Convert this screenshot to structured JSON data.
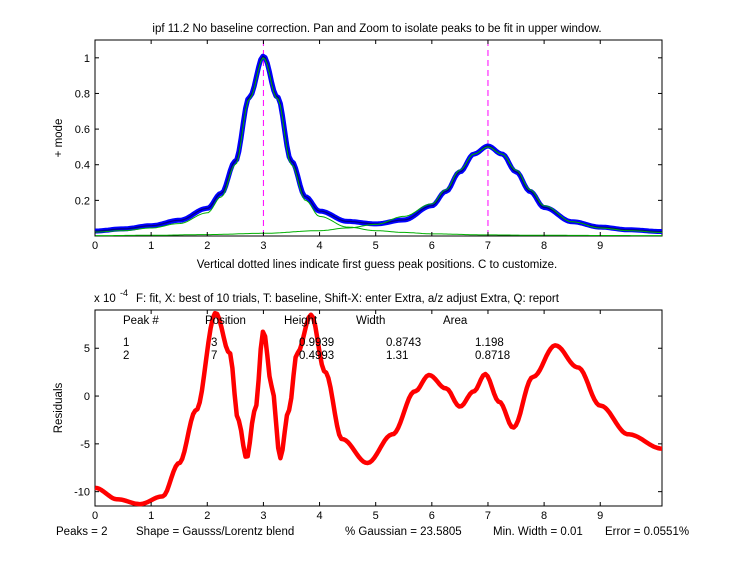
{
  "window": {
    "background": "#ffffff"
  },
  "colors": {
    "data_blue": "#0000ff",
    "fit_line": "#000080",
    "component_green": "#00b000",
    "marker_magenta": "#ff00ff",
    "residual_red": "#ff0000",
    "axis_black": "#000000"
  },
  "chart_data": [
    {
      "type": "line",
      "title": "ipf 11.2 No baseline correction. Pan and Zoom to isolate peaks to be fit in upper window.",
      "xlabel": "Vertical dotted lines indicate first guess peak positions. C to customize.",
      "ylabel": "+ mode",
      "xlim": [
        0,
        10.1
      ],
      "ylim": [
        0,
        1.1
      ],
      "grid": false,
      "xticks": [
        "0",
        "1",
        "2",
        "3",
        "4",
        "5",
        "6",
        "7",
        "8",
        "9"
      ],
      "yticks": [
        "0.2",
        "0.4",
        "0.6",
        "0.8",
        "1"
      ],
      "first_guess_positions": [
        3,
        7
      ],
      "series": [
        {
          "name": "",
          "style": "data-markers",
          "color": "#0000ff",
          "x": [
            0,
            0.5,
            1,
            1.5,
            2,
            2.25,
            2.5,
            2.75,
            3,
            3.25,
            3.5,
            3.75,
            4,
            4.5,
            5,
            5.5,
            6,
            6.25,
            6.5,
            6.75,
            7,
            7.25,
            7.5,
            7.75,
            8,
            8.5,
            9,
            9.5,
            10.1
          ],
          "y": [
            0.028,
            0.04,
            0.058,
            0.088,
            0.155,
            0.24,
            0.42,
            0.78,
            1.01,
            0.78,
            0.42,
            0.22,
            0.14,
            0.082,
            0.068,
            0.09,
            0.17,
            0.25,
            0.36,
            0.46,
            0.505,
            0.46,
            0.36,
            0.25,
            0.16,
            0.08,
            0.05,
            0.035,
            0.025
          ]
        },
        {
          "name": "",
          "style": "fit-line",
          "color": "#000080",
          "x": [
            0,
            0.5,
            1,
            1.5,
            2,
            2.25,
            2.5,
            2.75,
            3,
            3.25,
            3.5,
            3.75,
            4,
            4.5,
            5,
            5.5,
            6,
            6.25,
            6.5,
            6.75,
            7,
            7.25,
            7.5,
            7.75,
            8,
            8.5,
            9,
            9.5,
            10.1
          ],
          "y": [
            0.028,
            0.04,
            0.058,
            0.088,
            0.155,
            0.24,
            0.42,
            0.78,
            1.01,
            0.78,
            0.42,
            0.22,
            0.14,
            0.082,
            0.068,
            0.09,
            0.17,
            0.25,
            0.36,
            0.46,
            0.505,
            0.46,
            0.36,
            0.25,
            0.16,
            0.08,
            0.05,
            0.035,
            0.025
          ]
        },
        {
          "name": "",
          "style": "component",
          "color": "#00b000",
          "x": [
            0,
            0.5,
            1,
            1.5,
            2,
            2.25,
            2.5,
            2.75,
            3,
            3.25,
            3.5,
            3.75,
            4,
            4.5,
            5,
            5.5,
            6,
            7,
            8,
            9,
            10.1
          ],
          "y": [
            0.022,
            0.03,
            0.045,
            0.07,
            0.13,
            0.22,
            0.4,
            0.77,
            1.0,
            0.77,
            0.4,
            0.2,
            0.11,
            0.05,
            0.03,
            0.02,
            0.012,
            0.006,
            0.004,
            0.003,
            0.002
          ]
        },
        {
          "name": "",
          "style": "component",
          "color": "#00b000",
          "x": [
            0,
            1,
            2,
            3,
            4,
            4.5,
            5,
            5.5,
            6,
            6.25,
            6.5,
            6.75,
            7,
            7.25,
            7.5,
            7.75,
            8,
            8.5,
            9,
            9.5,
            10.1
          ],
          "y": [
            0.002,
            0.004,
            0.008,
            0.015,
            0.03,
            0.045,
            0.065,
            0.11,
            0.18,
            0.26,
            0.37,
            0.46,
            0.5,
            0.46,
            0.37,
            0.26,
            0.17,
            0.08,
            0.045,
            0.03,
            0.02
          ]
        }
      ]
    },
    {
      "type": "line",
      "title": "F: fit, X: best of 10 trials, T: baseline, Shift-X: enter Extra, a/z adjust Extra, Q: report",
      "xlabel": "",
      "ylabel": "Residuals",
      "exponent_label": "x 10",
      "exponent_power": "-4",
      "xlim": [
        0,
        10.1
      ],
      "ylim": [
        -11.5,
        9
      ],
      "grid": false,
      "xticks": [
        "0",
        "1",
        "2",
        "3",
        "4",
        "5",
        "6",
        "7",
        "8",
        "9"
      ],
      "yticks": [
        "-10",
        "-5",
        "0",
        "5"
      ],
      "series": [
        {
          "name": "",
          "style": "residual-markers",
          "color": "#ff0000",
          "x": [
            0,
            0.4,
            0.8,
            1.2,
            1.5,
            1.8,
            2.15,
            2.4,
            2.55,
            2.7,
            2.85,
            3.0,
            3.15,
            3.3,
            3.45,
            3.6,
            3.85,
            4.1,
            4.4,
            4.85,
            5.3,
            5.7,
            5.95,
            6.25,
            6.5,
            6.75,
            6.95,
            7.2,
            7.45,
            7.8,
            8.2,
            8.6,
            9.0,
            9.5,
            10.1
          ],
          "y": [
            -9.6,
            -10.8,
            -11.3,
            -10.5,
            -7,
            -1.5,
            8.7,
            4.5,
            -2.5,
            -6.5,
            -1.5,
            6.8,
            1.0,
            -6.5,
            -1.5,
            4.5,
            8.5,
            2.5,
            -4.5,
            -7,
            -4,
            0.5,
            2.2,
            0.8,
            -1.1,
            0.5,
            2.3,
            -0.6,
            -3.3,
            2.0,
            5.3,
            3.0,
            -1.0,
            -4.0,
            -5.5
          ]
        }
      ],
      "annotations": {
        "headers": [
          "Peak #",
          "Position",
          "Height",
          "Width",
          "Area"
        ],
        "rows": [
          [
            "1",
            "3",
            "0.9939",
            "0.8743",
            "1.198"
          ],
          [
            "2",
            "7",
            "0.4993",
            "1.31",
            "0.8718"
          ]
        ]
      }
    }
  ],
  "status": {
    "peaks": "Peaks = 2",
    "shape": "Shape = Gausss/Lorentz blend",
    "gaussian": "% Gaussian = 23.5805",
    "min_width": "Min. Width = 0.01",
    "error": "Error = 0.0551%"
  }
}
